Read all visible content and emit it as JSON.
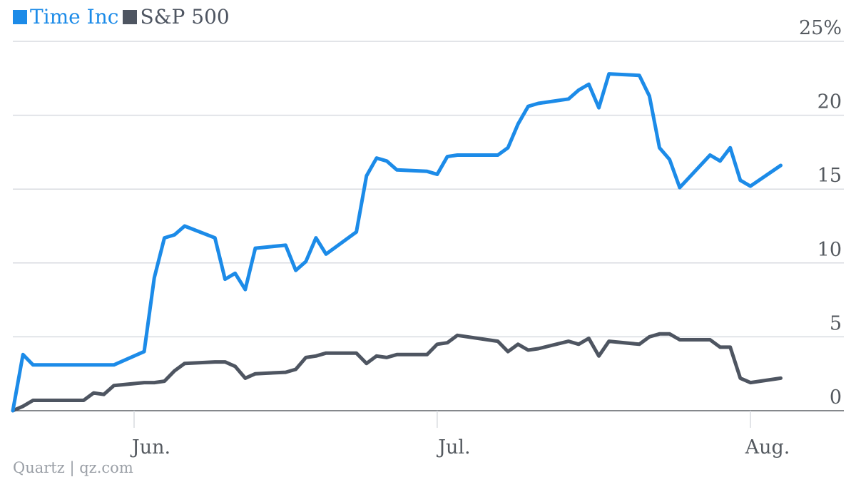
{
  "source": "Quartz | qz.com",
  "legend_position": "top-left",
  "colors": {
    "Time Inc": "#1c8be8",
    "S&P 500": "#4e5561",
    "gridline": "#d8dbe0",
    "axis": "#5d6067"
  },
  "chart_data": {
    "type": "line",
    "title": "",
    "xlabel": "",
    "ylabel": "",
    "ylim": [
      0,
      25
    ],
    "yticks": [
      {
        "value": 25,
        "label": "25%"
      },
      {
        "value": 20,
        "label": "20"
      },
      {
        "value": 15,
        "label": "15"
      },
      {
        "value": 10,
        "label": "10"
      },
      {
        "value": 5,
        "label": "5"
      },
      {
        "value": 0,
        "label": "0"
      }
    ],
    "xlim": [
      "2014-05-20",
      "2014-08-07"
    ],
    "xticks": [
      {
        "value": "2014-06-01",
        "label": "Jun."
      },
      {
        "value": "2014-07-01",
        "label": "Jul."
      },
      {
        "value": "2014-08-01",
        "label": "Aug."
      }
    ],
    "grid": true,
    "series": [
      {
        "name": "Time Inc",
        "points": [
          [
            "2014-05-20",
            0.0
          ],
          [
            "2014-05-21",
            3.8
          ],
          [
            "2014-05-22",
            3.1
          ],
          [
            "2014-05-23",
            3.1
          ],
          [
            "2014-05-27",
            3.1
          ],
          [
            "2014-05-28",
            3.1
          ],
          [
            "2014-05-29",
            3.1
          ],
          [
            "2014-05-30",
            3.1
          ],
          [
            "2014-06-02",
            4.0
          ],
          [
            "2014-06-03",
            9.0
          ],
          [
            "2014-06-04",
            11.7
          ],
          [
            "2014-06-05",
            11.9
          ],
          [
            "2014-06-06",
            12.5
          ],
          [
            "2014-06-09",
            11.7
          ],
          [
            "2014-06-10",
            8.9
          ],
          [
            "2014-06-11",
            9.3
          ],
          [
            "2014-06-12",
            8.2
          ],
          [
            "2014-06-13",
            11.0
          ],
          [
            "2014-06-16",
            11.2
          ],
          [
            "2014-06-17",
            9.5
          ],
          [
            "2014-06-18",
            10.1
          ],
          [
            "2014-06-19",
            11.7
          ],
          [
            "2014-06-20",
            10.6
          ],
          [
            "2014-06-23",
            12.1
          ],
          [
            "2014-06-24",
            15.9
          ],
          [
            "2014-06-25",
            17.1
          ],
          [
            "2014-06-26",
            16.9
          ],
          [
            "2014-06-27",
            16.3
          ],
          [
            "2014-06-30",
            16.2
          ],
          [
            "2014-07-01",
            16.0
          ],
          [
            "2014-07-02",
            17.2
          ],
          [
            "2014-07-03",
            17.3
          ],
          [
            "2014-07-07",
            17.3
          ],
          [
            "2014-07-08",
            17.8
          ],
          [
            "2014-07-09",
            19.4
          ],
          [
            "2014-07-10",
            20.6
          ],
          [
            "2014-07-11",
            20.8
          ],
          [
            "2014-07-14",
            21.1
          ],
          [
            "2014-07-15",
            21.7
          ],
          [
            "2014-07-16",
            22.1
          ],
          [
            "2014-07-17",
            20.5
          ],
          [
            "2014-07-18",
            22.8
          ],
          [
            "2014-07-21",
            22.7
          ],
          [
            "2014-07-22",
            21.3
          ],
          [
            "2014-07-23",
            17.8
          ],
          [
            "2014-07-24",
            17.0
          ],
          [
            "2014-07-25",
            15.1
          ],
          [
            "2014-07-28",
            17.3
          ],
          [
            "2014-07-29",
            16.9
          ],
          [
            "2014-07-30",
            17.8
          ],
          [
            "2014-07-31",
            15.6
          ],
          [
            "2014-08-01",
            15.2
          ],
          [
            "2014-08-04",
            16.6
          ]
        ]
      },
      {
        "name": "S&P 500",
        "points": [
          [
            "2014-05-20",
            0.0
          ],
          [
            "2014-05-21",
            0.3
          ],
          [
            "2014-05-22",
            0.7
          ],
          [
            "2014-05-23",
            0.7
          ],
          [
            "2014-05-27",
            0.7
          ],
          [
            "2014-05-28",
            1.2
          ],
          [
            "2014-05-29",
            1.1
          ],
          [
            "2014-05-30",
            1.7
          ],
          [
            "2014-06-02",
            1.9
          ],
          [
            "2014-06-03",
            1.9
          ],
          [
            "2014-06-04",
            2.0
          ],
          [
            "2014-06-05",
            2.7
          ],
          [
            "2014-06-06",
            3.2
          ],
          [
            "2014-06-09",
            3.3
          ],
          [
            "2014-06-10",
            3.3
          ],
          [
            "2014-06-11",
            3.0
          ],
          [
            "2014-06-12",
            2.2
          ],
          [
            "2014-06-13",
            2.5
          ],
          [
            "2014-06-16",
            2.6
          ],
          [
            "2014-06-17",
            2.8
          ],
          [
            "2014-06-18",
            3.6
          ],
          [
            "2014-06-19",
            3.7
          ],
          [
            "2014-06-20",
            3.9
          ],
          [
            "2014-06-23",
            3.9
          ],
          [
            "2014-06-24",
            3.2
          ],
          [
            "2014-06-25",
            3.7
          ],
          [
            "2014-06-26",
            3.6
          ],
          [
            "2014-06-27",
            3.8
          ],
          [
            "2014-06-30",
            3.8
          ],
          [
            "2014-07-01",
            4.5
          ],
          [
            "2014-07-02",
            4.6
          ],
          [
            "2014-07-03",
            5.1
          ],
          [
            "2014-07-07",
            4.7
          ],
          [
            "2014-07-08",
            4.0
          ],
          [
            "2014-07-09",
            4.5
          ],
          [
            "2014-07-10",
            4.1
          ],
          [
            "2014-07-11",
            4.2
          ],
          [
            "2014-07-14",
            4.7
          ],
          [
            "2014-07-15",
            4.5
          ],
          [
            "2014-07-16",
            4.9
          ],
          [
            "2014-07-17",
            3.7
          ],
          [
            "2014-07-18",
            4.7
          ],
          [
            "2014-07-21",
            4.5
          ],
          [
            "2014-07-22",
            5.0
          ],
          [
            "2014-07-23",
            5.2
          ],
          [
            "2014-07-24",
            5.2
          ],
          [
            "2014-07-25",
            4.8
          ],
          [
            "2014-07-28",
            4.8
          ],
          [
            "2014-07-29",
            4.3
          ],
          [
            "2014-07-30",
            4.3
          ],
          [
            "2014-07-31",
            2.2
          ],
          [
            "2014-08-01",
            1.9
          ],
          [
            "2014-08-04",
            2.2
          ]
        ]
      }
    ]
  }
}
